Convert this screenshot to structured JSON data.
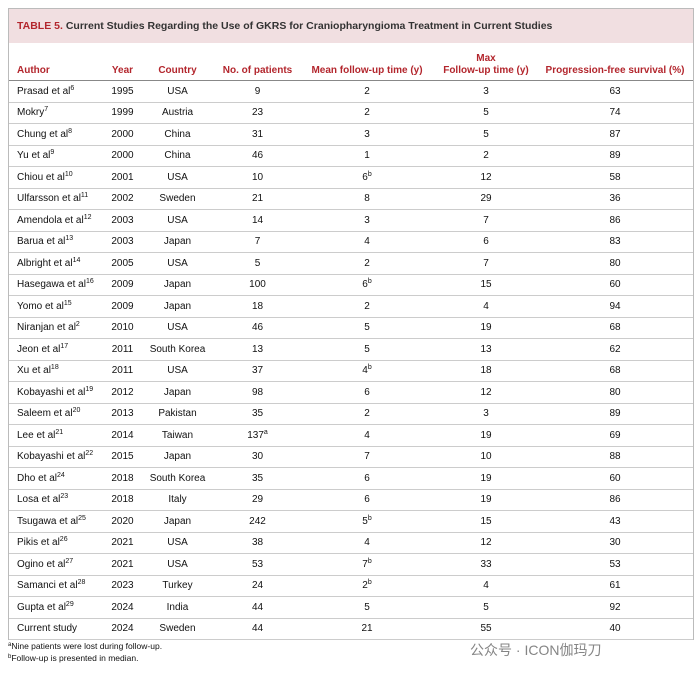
{
  "header": {
    "label": "TABLE 5.",
    "title": "Current Studies Regarding the Use of GKRS for Craniopharyngioma Treatment in Current Studies"
  },
  "table": {
    "columns": [
      "Author",
      "Year",
      "Country",
      "No. of patients",
      "Mean follow-up time (y)",
      [
        "Max",
        "Follow-up time (y)"
      ],
      "Progression-free survival (%)"
    ],
    "rows": [
      [
        {
          "text": "Prasad et al",
          "sup": "6"
        },
        "1995",
        "USA",
        "9",
        "2",
        "3",
        "63"
      ],
      [
        {
          "text": "Mokry",
          "sup": "7"
        },
        "1999",
        "Austria",
        "23",
        "2",
        "5",
        "74"
      ],
      [
        {
          "text": "Chung et al",
          "sup": "8"
        },
        "2000",
        "China",
        "31",
        "3",
        "5",
        "87"
      ],
      [
        {
          "text": "Yu et al",
          "sup": "9"
        },
        "2000",
        "China",
        "46",
        "1",
        "2",
        "89"
      ],
      [
        {
          "text": "Chiou et al",
          "sup": "10"
        },
        "2001",
        "USA",
        "10",
        {
          "text": "6",
          "sup": "b"
        },
        "12",
        "58"
      ],
      [
        {
          "text": "Ulfarsson et al",
          "sup": "11"
        },
        "2002",
        "Sweden",
        "21",
        "8",
        "29",
        "36"
      ],
      [
        {
          "text": "Amendola et al",
          "sup": "12"
        },
        "2003",
        "USA",
        "14",
        "3",
        "7",
        "86"
      ],
      [
        {
          "text": "Barua et al",
          "sup": "13"
        },
        "2003",
        "Japan",
        "7",
        "4",
        "6",
        "83"
      ],
      [
        {
          "text": "Albright et al",
          "sup": "14"
        },
        "2005",
        "USA",
        "5",
        "2",
        "7",
        "80"
      ],
      [
        {
          "text": "Hasegawa et al",
          "sup": "16"
        },
        "2009",
        "Japan",
        "100",
        {
          "text": "6",
          "sup": "b"
        },
        "15",
        "60"
      ],
      [
        {
          "text": "Yomo et al",
          "sup": "15"
        },
        "2009",
        "Japan",
        "18",
        "2",
        "4",
        "94"
      ],
      [
        {
          "text": "Niranjan et al",
          "sup": "2"
        },
        "2010",
        "USA",
        "46",
        "5",
        "19",
        "68"
      ],
      [
        {
          "text": "Jeon et al",
          "sup": "17"
        },
        "2011",
        "South Korea",
        "13",
        "5",
        "13",
        "62"
      ],
      [
        {
          "text": "Xu et al",
          "sup": "18"
        },
        "2011",
        "USA",
        "37",
        {
          "text": "4",
          "sup": "b"
        },
        "18",
        "68"
      ],
      [
        {
          "text": "Kobayashi et al",
          "sup": "19"
        },
        "2012",
        "Japan",
        "98",
        "6",
        "12",
        "80"
      ],
      [
        {
          "text": "Saleem et al",
          "sup": "20"
        },
        "2013",
        "Pakistan",
        "35",
        "2",
        "3",
        "89"
      ],
      [
        {
          "text": "Lee et al",
          "sup": "21"
        },
        "2014",
        "Taiwan",
        {
          "text": "137",
          "sup": "a"
        },
        "4",
        "19",
        "69"
      ],
      [
        {
          "text": "Kobayashi et al",
          "sup": "22"
        },
        "2015",
        "Japan",
        "30",
        "7",
        "10",
        "88"
      ],
      [
        {
          "text": "Dho et al",
          "sup": "24"
        },
        "2018",
        "South Korea",
        "35",
        "6",
        "19",
        "60"
      ],
      [
        {
          "text": "Losa et al",
          "sup": "23"
        },
        "2018",
        "Italy",
        "29",
        "6",
        "19",
        "86"
      ],
      [
        {
          "text": "Tsugawa et al",
          "sup": "25"
        },
        "2020",
        "Japan",
        "242",
        {
          "text": "5",
          "sup": "b"
        },
        "15",
        "43"
      ],
      [
        {
          "text": "Pikis et al",
          "sup": "26"
        },
        "2021",
        "USA",
        "38",
        "4",
        "12",
        "30"
      ],
      [
        {
          "text": "Ogino et al",
          "sup": "27"
        },
        "2021",
        "USA",
        "53",
        {
          "text": "7",
          "sup": "b"
        },
        "33",
        "53"
      ],
      [
        {
          "text": "Samanci et al",
          "sup": "28"
        },
        "2023",
        "Turkey",
        "24",
        {
          "text": "2",
          "sup": "b"
        },
        "4",
        "61"
      ],
      [
        {
          "text": "Gupta et al",
          "sup": "29"
        },
        "2024",
        "India",
        "44",
        "5",
        "5",
        "92"
      ],
      [
        "Current study",
        "2024",
        "Sweden",
        "44",
        "21",
        "55",
        "40"
      ]
    ]
  },
  "footnotes": [
    {
      "sup": "a",
      "text": "Nine patients were lost during follow-up."
    },
    {
      "sup": "b",
      "text": "Follow-up is presented in median."
    }
  ],
  "watermark": "公众号 · ICON伽玛刀"
}
